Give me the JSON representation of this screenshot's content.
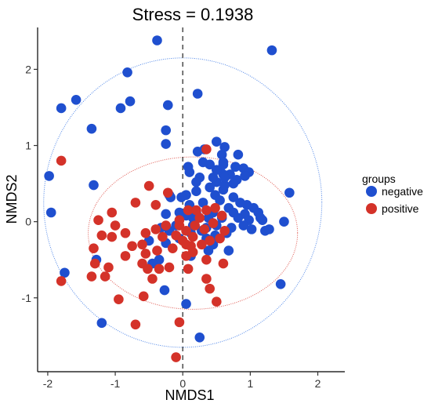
{
  "chart_data": {
    "type": "scatter",
    "title": "Stress = 0.1938",
    "xlabel": "NMDS1",
    "ylabel": "NMDS2",
    "xlim": [
      -2.15,
      2.4
    ],
    "ylim": [
      -1.97,
      2.55
    ],
    "xticks": [
      -2,
      -1,
      0,
      1,
      2
    ],
    "yticks": [
      -1,
      0,
      1,
      2
    ],
    "grid": false,
    "reference_line": {
      "x": 0,
      "style": "dashed"
    },
    "legend": {
      "title": "groups",
      "placement": "right"
    },
    "series": [
      {
        "name": "negative",
        "color": "#1f4fcf",
        "ellipse": {
          "cx": 0.0,
          "cy": 0.25,
          "rx": 2.06,
          "ry": 1.9,
          "color": "#4f86e8"
        },
        "points": [
          [
            -0.38,
            2.38
          ],
          [
            1.32,
            2.25
          ],
          [
            -0.82,
            1.96
          ],
          [
            -0.22,
            1.53
          ],
          [
            0.22,
            1.68
          ],
          [
            -1.58,
            1.6
          ],
          [
            -1.8,
            1.49
          ],
          [
            -0.92,
            1.49
          ],
          [
            -0.78,
            1.58
          ],
          [
            -1.35,
            1.22
          ],
          [
            -0.25,
            1.2
          ],
          [
            -0.25,
            1.02
          ],
          [
            0.22,
            0.92
          ],
          [
            0.5,
            1.05
          ],
          [
            0.58,
            0.88
          ],
          [
            0.6,
            0.75
          ],
          [
            0.9,
            0.7
          ],
          [
            0.82,
            0.88
          ],
          [
            0.32,
            0.95
          ],
          [
            0.62,
            0.98
          ],
          [
            0.6,
            0.78
          ],
          [
            0.78,
            0.72
          ],
          [
            0.7,
            0.62
          ],
          [
            0.98,
            0.65
          ],
          [
            0.4,
            0.75
          ],
          [
            0.5,
            0.52
          ],
          [
            0.6,
            0.62
          ],
          [
            0.55,
            0.68
          ],
          [
            0.3,
            0.78
          ],
          [
            0.8,
            0.55
          ],
          [
            0.6,
            0.42
          ],
          [
            0.92,
            0.6
          ],
          [
            0.62,
            0.48
          ],
          [
            0.45,
            0.58
          ],
          [
            0.5,
            0.68
          ],
          [
            0.25,
            0.58
          ],
          [
            0.4,
            0.45
          ],
          [
            0.2,
            0.52
          ],
          [
            0.62,
            0.58
          ],
          [
            0.75,
            0.5
          ],
          [
            0.05,
            0.35
          ],
          [
            0.1,
            0.65
          ],
          [
            -0.2,
            0.35
          ],
          [
            0.48,
            0.35
          ],
          [
            0.75,
            0.32
          ],
          [
            0.2,
            0.4
          ],
          [
            -0.02,
            0.32
          ],
          [
            0.55,
            0.28
          ],
          [
            0.3,
            0.25
          ],
          [
            0.85,
            0.25
          ],
          [
            0.1,
            0.22
          ],
          [
            0.68,
            0.18
          ],
          [
            0.95,
            0.22
          ],
          [
            1.05,
            0.18
          ],
          [
            0.2,
            0.12
          ],
          [
            0.45,
            0.12
          ],
          [
            0.75,
            0.12
          ],
          [
            0.92,
            0.1
          ],
          [
            1.12,
            0.12
          ],
          [
            0.05,
            0.08
          ],
          [
            0.38,
            0.05
          ],
          [
            0.58,
            0.05
          ],
          [
            0.82,
            0.05
          ],
          [
            0.98,
            0.02
          ],
          [
            1.18,
            0.02
          ],
          [
            0.15,
            -0.05
          ],
          [
            0.35,
            -0.08
          ],
          [
            0.5,
            -0.05
          ],
          [
            0.72,
            -0.08
          ],
          [
            1.02,
            -0.1
          ],
          [
            1.22,
            -0.12
          ],
          [
            0.28,
            -0.12
          ],
          [
            0.12,
            -0.15
          ],
          [
            0.65,
            -0.15
          ],
          [
            0.9,
            -0.05
          ],
          [
            1.28,
            -0.1
          ],
          [
            1.15,
            0.05
          ],
          [
            1.5,
            0.0
          ],
          [
            1.58,
            0.38
          ],
          [
            -0.05,
            -0.22
          ],
          [
            0.35,
            -0.22
          ],
          [
            0.48,
            -0.18
          ],
          [
            -0.25,
            -0.28
          ],
          [
            -0.2,
            -0.12
          ],
          [
            -0.32,
            -0.08
          ],
          [
            -0.1,
            -0.05
          ],
          [
            -0.25,
            0.1
          ],
          [
            -0.18,
            0.32
          ],
          [
            -0.05,
            0.12
          ],
          [
            0.15,
            0.05
          ],
          [
            0.45,
            -0.3
          ],
          [
            0.68,
            -0.38
          ],
          [
            0.38,
            -0.38
          ],
          [
            -0.35,
            -0.5
          ],
          [
            -0.5,
            -0.25
          ],
          [
            -0.45,
            -0.55
          ],
          [
            0.12,
            -0.45
          ],
          [
            -1.98,
            0.6
          ],
          [
            -1.95,
            0.12
          ],
          [
            -1.32,
            0.48
          ],
          [
            -1.28,
            -0.5
          ],
          [
            -1.75,
            -0.67
          ],
          [
            -0.27,
            -0.9
          ],
          [
            0.05,
            -1.08
          ],
          [
            1.45,
            -0.82
          ],
          [
            -1.2,
            -1.33
          ],
          [
            0.25,
            -1.52
          ],
          [
            0.08,
            0.72
          ]
        ]
      },
      {
        "name": "positive",
        "color": "#d43229",
        "ellipse": {
          "cx": 0.15,
          "cy": -0.15,
          "rx": 1.55,
          "ry": 1.0,
          "color": "#e05a52"
        },
        "points": [
          [
            -1.8,
            0.8
          ],
          [
            0.35,
            0.95
          ],
          [
            -0.5,
            0.47
          ],
          [
            -0.22,
            0.38
          ],
          [
            -1.05,
            0.12
          ],
          [
            -1.25,
            0.02
          ],
          [
            -1.2,
            -0.18
          ],
          [
            -1.32,
            -0.35
          ],
          [
            -1.05,
            -0.2
          ],
          [
            -1.0,
            -0.05
          ],
          [
            -0.85,
            -0.15
          ],
          [
            -0.75,
            -0.32
          ],
          [
            -0.6,
            -0.3
          ],
          [
            -0.55,
            -0.15
          ],
          [
            -0.4,
            -0.1
          ],
          [
            -0.3,
            -0.2
          ],
          [
            -0.25,
            -0.05
          ],
          [
            -0.1,
            -0.18
          ],
          [
            -0.05,
            -0.05
          ],
          [
            0.0,
            -0.25
          ],
          [
            0.05,
            -0.12
          ],
          [
            0.15,
            -0.2
          ],
          [
            0.18,
            -0.05
          ],
          [
            0.25,
            0.05
          ],
          [
            0.08,
            0.15
          ],
          [
            0.2,
            0.15
          ],
          [
            0.35,
            0.15
          ],
          [
            0.32,
            -0.1
          ],
          [
            0.45,
            -0.02
          ],
          [
            0.48,
            0.18
          ],
          [
            0.58,
            0.08
          ],
          [
            0.62,
            -0.12
          ],
          [
            0.55,
            -0.22
          ],
          [
            0.4,
            -0.25
          ],
          [
            0.28,
            -0.3
          ],
          [
            0.12,
            -0.32
          ],
          [
            -0.15,
            -0.35
          ],
          [
            -0.38,
            -0.38
          ],
          [
            -0.55,
            -0.42
          ],
          [
            -0.6,
            -0.55
          ],
          [
            -0.52,
            -0.62
          ],
          [
            -0.35,
            -0.62
          ],
          [
            -0.2,
            -0.6
          ],
          [
            -0.45,
            -0.75
          ],
          [
            -0.85,
            -0.45
          ],
          [
            -1.1,
            -0.6
          ],
          [
            -1.3,
            -0.55
          ],
          [
            -1.35,
            -0.72
          ],
          [
            -1.15,
            -0.72
          ],
          [
            -1.8,
            -0.78
          ],
          [
            -0.95,
            -1.02
          ],
          [
            -0.58,
            -0.98
          ],
          [
            -0.7,
            -1.35
          ],
          [
            0.05,
            -0.45
          ],
          [
            0.08,
            -0.62
          ],
          [
            0.15,
            -0.4
          ],
          [
            0.35,
            -0.5
          ],
          [
            0.35,
            -0.75
          ],
          [
            0.4,
            -0.88
          ],
          [
            0.5,
            -1.05
          ],
          [
            0.05,
            -0.3
          ],
          [
            -0.05,
            0.02
          ],
          [
            -0.4,
            0.22
          ],
          [
            -0.7,
            0.25
          ],
          [
            0.6,
            -0.55
          ],
          [
            -0.05,
            -1.32
          ],
          [
            -0.1,
            -1.78
          ]
        ]
      }
    ]
  }
}
